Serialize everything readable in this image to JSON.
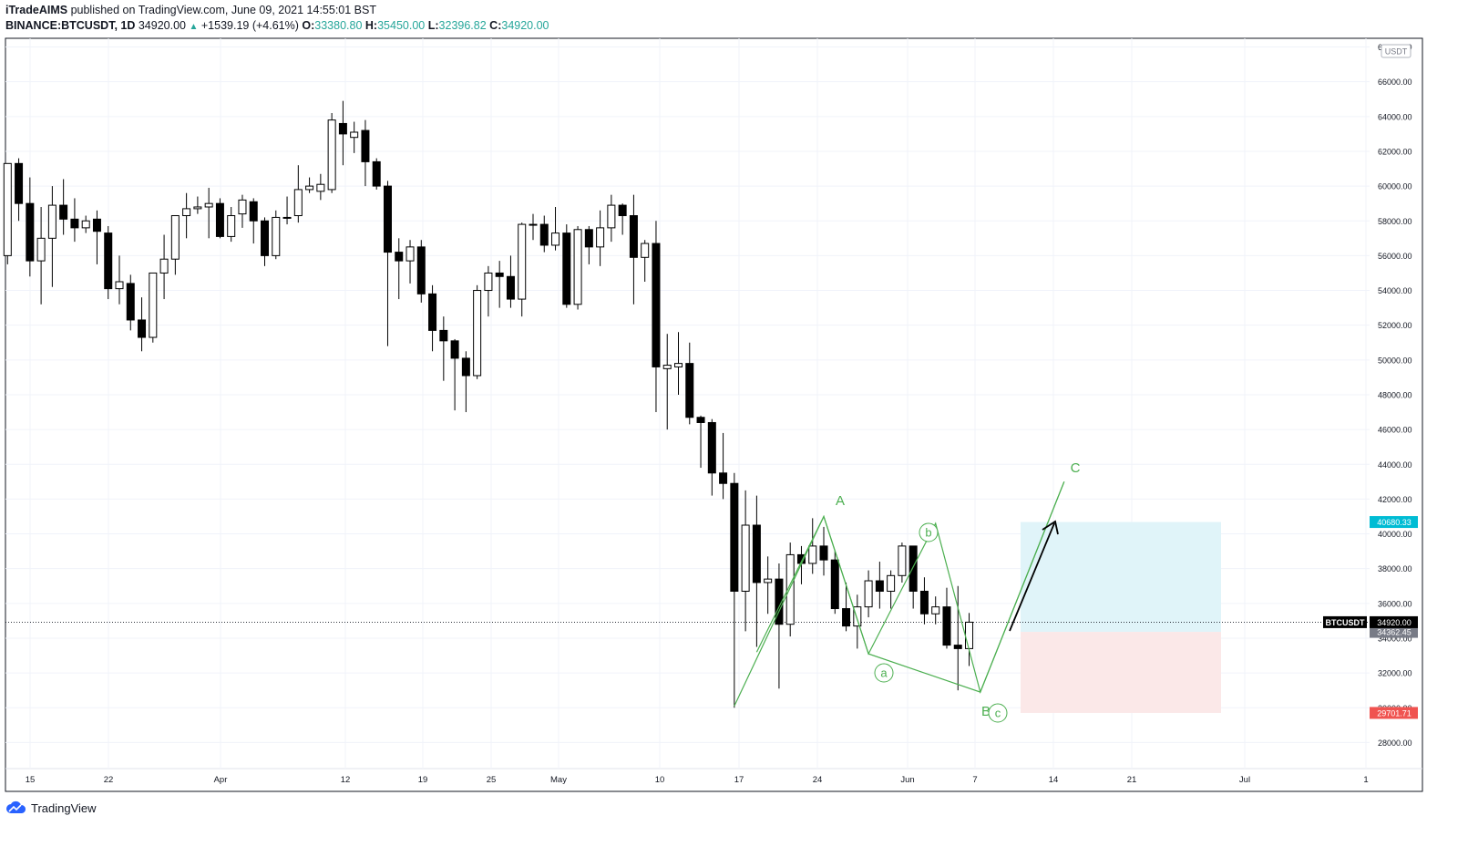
{
  "header": {
    "author": "iTradeAIMS",
    "published": "published on TradingView.com, June 09, 2021 14:55:01 BST",
    "symbol": "BINANCE:BTCUSDT, 1D",
    "last": "34920.00",
    "change": "+1539.19 (+4.61%)",
    "o_label": "O:",
    "o": "33380.80",
    "h_label": "H:",
    "h": "35450.00",
    "l_label": "L:",
    "l": "32396.82",
    "c_label": "C:",
    "c": "34920.00"
  },
  "footer": {
    "brand": "TradingView"
  },
  "colors": {
    "up": "#ffffff",
    "down": "#000000",
    "wave": "#4caf50",
    "target_zone": "#e0f4f9",
    "stop_zone": "#fbe8e8",
    "target_tag": "#00bcd4",
    "stop_tag": "#f05350",
    "price_tag": "#000000",
    "avg_tag": "#787b86"
  },
  "chart_data": {
    "type": "candlestick",
    "currency": "USDT",
    "x_ticks": [
      "15",
      "22",
      "Apr",
      "12",
      "19",
      "25",
      "May",
      "10",
      "17",
      "24",
      "Jun",
      "7",
      "14",
      "21",
      "Jul",
      "1"
    ],
    "ylim": [
      26500,
      68500
    ],
    "y_ticks": [
      "68000.00",
      "66000.00",
      "64000.00",
      "62000.00",
      "60000.00",
      "58000.00",
      "56000.00",
      "54000.00",
      "52000.00",
      "50000.00",
      "48000.00",
      "46000.00",
      "44000.00",
      "42000.00",
      "40000.00",
      "38000.00",
      "36000.00",
      "34000.00",
      "32000.00",
      "30000.00",
      "28000.00"
    ],
    "candles": [
      {
        "o": 56000,
        "h": 61000,
        "l": 55500,
        "c": 61300
      },
      {
        "o": 61300,
        "h": 61600,
        "l": 58000,
        "c": 59000
      },
      {
        "o": 59000,
        "h": 60500,
        "l": 54800,
        "c": 55700
      },
      {
        "o": 55700,
        "h": 58800,
        "l": 53200,
        "c": 57000
      },
      {
        "o": 57000,
        "h": 60000,
        "l": 54200,
        "c": 58900
      },
      {
        "o": 58900,
        "h": 60400,
        "l": 57200,
        "c": 58100
      },
      {
        "o": 58100,
        "h": 59300,
        "l": 56800,
        "c": 57600
      },
      {
        "o": 57600,
        "h": 58300,
        "l": 57300,
        "c": 58000
      },
      {
        "o": 58100,
        "h": 58600,
        "l": 55500,
        "c": 57400
      },
      {
        "o": 57300,
        "h": 57700,
        "l": 53500,
        "c": 54100
      },
      {
        "o": 54100,
        "h": 56000,
        "l": 53200,
        "c": 54500
      },
      {
        "o": 54400,
        "h": 54900,
        "l": 51700,
        "c": 52300
      },
      {
        "o": 52300,
        "h": 53600,
        "l": 50500,
        "c": 51300
      },
      {
        "o": 51300,
        "h": 55000,
        "l": 51000,
        "c": 55000
      },
      {
        "o": 55000,
        "h": 57200,
        "l": 53500,
        "c": 55800
      },
      {
        "o": 55800,
        "h": 58000,
        "l": 54900,
        "c": 58300
      },
      {
        "o": 58300,
        "h": 59600,
        "l": 57000,
        "c": 58700
      },
      {
        "o": 58700,
        "h": 59400,
        "l": 58400,
        "c": 58800
      },
      {
        "o": 58800,
        "h": 59900,
        "l": 57000,
        "c": 59000
      },
      {
        "o": 59000,
        "h": 59300,
        "l": 57000,
        "c": 57100
      },
      {
        "o": 57100,
        "h": 58800,
        "l": 56800,
        "c": 58300
      },
      {
        "o": 58400,
        "h": 59500,
        "l": 57600,
        "c": 59200
      },
      {
        "o": 59100,
        "h": 59300,
        "l": 56700,
        "c": 58000
      },
      {
        "o": 58000,
        "h": 58200,
        "l": 55400,
        "c": 56000
      },
      {
        "o": 56000,
        "h": 58600,
        "l": 55800,
        "c": 58200
      },
      {
        "o": 58200,
        "h": 59400,
        "l": 57800,
        "c": 58200
      },
      {
        "o": 58300,
        "h": 61200,
        "l": 57900,
        "c": 59800
      },
      {
        "o": 59800,
        "h": 60500,
        "l": 59600,
        "c": 60000
      },
      {
        "o": 59700,
        "h": 60700,
        "l": 59200,
        "c": 60100
      },
      {
        "o": 59800,
        "h": 64200,
        "l": 59600,
        "c": 63800
      },
      {
        "o": 63600,
        "h": 64900,
        "l": 61200,
        "c": 63000
      },
      {
        "o": 62800,
        "h": 63700,
        "l": 61900,
        "c": 63100
      },
      {
        "o": 63200,
        "h": 63800,
        "l": 60000,
        "c": 61400
      },
      {
        "o": 61400,
        "h": 61600,
        "l": 59800,
        "c": 60000
      },
      {
        "o": 60000,
        "h": 60300,
        "l": 50800,
        "c": 56200
      },
      {
        "o": 56200,
        "h": 57000,
        "l": 53500,
        "c": 55700
      },
      {
        "o": 55700,
        "h": 56900,
        "l": 54400,
        "c": 56500
      },
      {
        "o": 56500,
        "h": 56900,
        "l": 53300,
        "c": 53800
      },
      {
        "o": 53800,
        "h": 54300,
        "l": 50500,
        "c": 51700
      },
      {
        "o": 51700,
        "h": 52500,
        "l": 48800,
        "c": 51100
      },
      {
        "o": 51100,
        "h": 51200,
        "l": 47100,
        "c": 50100
      },
      {
        "o": 50100,
        "h": 50500,
        "l": 47000,
        "c": 49100
      },
      {
        "o": 49100,
        "h": 54300,
        "l": 48900,
        "c": 54000
      },
      {
        "o": 54000,
        "h": 55400,
        "l": 52500,
        "c": 55000
      },
      {
        "o": 55000,
        "h": 55700,
        "l": 53000,
        "c": 54800
      },
      {
        "o": 54800,
        "h": 56000,
        "l": 53000,
        "c": 53500
      },
      {
        "o": 53500,
        "h": 57900,
        "l": 52500,
        "c": 57800
      },
      {
        "o": 57800,
        "h": 58400,
        "l": 56900,
        "c": 57800
      },
      {
        "o": 57800,
        "h": 58300,
        "l": 56200,
        "c": 56600
      },
      {
        "o": 56600,
        "h": 58800,
        "l": 56300,
        "c": 57300
      },
      {
        "o": 57300,
        "h": 57800,
        "l": 53000,
        "c": 53200
      },
      {
        "o": 53200,
        "h": 57700,
        "l": 52900,
        "c": 57500
      },
      {
        "o": 57500,
        "h": 57700,
        "l": 55500,
        "c": 56500
      },
      {
        "o": 56500,
        "h": 58600,
        "l": 55400,
        "c": 57600
      },
      {
        "o": 57600,
        "h": 59500,
        "l": 56800,
        "c": 58900
      },
      {
        "o": 58900,
        "h": 59000,
        "l": 57200,
        "c": 58300
      },
      {
        "o": 58300,
        "h": 59500,
        "l": 53200,
        "c": 55900
      },
      {
        "o": 55900,
        "h": 56900,
        "l": 54500,
        "c": 56700
      },
      {
        "o": 56700,
        "h": 58000,
        "l": 47000,
        "c": 49600
      },
      {
        "o": 49500,
        "h": 51500,
        "l": 46000,
        "c": 49700
      },
      {
        "o": 49600,
        "h": 51600,
        "l": 48000,
        "c": 49800
      },
      {
        "o": 49800,
        "h": 51000,
        "l": 46300,
        "c": 46700
      },
      {
        "o": 46700,
        "h": 46800,
        "l": 43800,
        "c": 46400
      },
      {
        "o": 46400,
        "h": 46600,
        "l": 42200,
        "c": 43500
      },
      {
        "o": 43500,
        "h": 45800,
        "l": 42000,
        "c": 42900
      },
      {
        "o": 42900,
        "h": 43500,
        "l": 30000,
        "c": 36700
      },
      {
        "o": 36700,
        "h": 42500,
        "l": 34400,
        "c": 40500
      },
      {
        "o": 40500,
        "h": 42200,
        "l": 33500,
        "c": 37200
      },
      {
        "o": 37200,
        "h": 38700,
        "l": 35400,
        "c": 37400
      },
      {
        "o": 37400,
        "h": 38300,
        "l": 31100,
        "c": 34800
      },
      {
        "o": 34800,
        "h": 39500,
        "l": 34100,
        "c": 38800
      },
      {
        "o": 38800,
        "h": 39300,
        "l": 37100,
        "c": 38300
      },
      {
        "o": 38300,
        "h": 40900,
        "l": 37700,
        "c": 39300
      },
      {
        "o": 39300,
        "h": 40400,
        "l": 37600,
        "c": 38500
      },
      {
        "o": 38500,
        "h": 39000,
        "l": 35400,
        "c": 35700
      },
      {
        "o": 35700,
        "h": 37200,
        "l": 34400,
        "c": 34700
      },
      {
        "o": 34700,
        "h": 36500,
        "l": 33400,
        "c": 35800
      },
      {
        "o": 35800,
        "h": 37900,
        "l": 35200,
        "c": 37300
      },
      {
        "o": 37300,
        "h": 38400,
        "l": 35700,
        "c": 36700
      },
      {
        "o": 36700,
        "h": 37900,
        "l": 35700,
        "c": 37600
      },
      {
        "o": 37600,
        "h": 39500,
        "l": 37200,
        "c": 39300
      },
      {
        "o": 39300,
        "h": 39300,
        "l": 35700,
        "c": 36700
      },
      {
        "o": 36700,
        "h": 37500,
        "l": 34800,
        "c": 35400
      },
      {
        "o": 35400,
        "h": 36400,
        "l": 34800,
        "c": 35800
      },
      {
        "o": 35800,
        "h": 36900,
        "l": 33400,
        "c": 33600
      },
      {
        "o": 33600,
        "h": 37000,
        "l": 31000,
        "c": 33400
      },
      {
        "o": 33400,
        "h": 35450,
        "l": 32400,
        "c": 34920
      }
    ],
    "last_price": 34920,
    "last_price_label": "34920.00",
    "symbol_tag": "BTCUSDT",
    "avg_price": 34362.45,
    "avg_price_label": "34362.45",
    "target_price": 40680.33,
    "target_price_label": "40680.33",
    "stop_price": 29701.71,
    "stop_price_label": "29701.71",
    "wave_labels": {
      "A": "A",
      "B": "B",
      "C": "C",
      "a": "a",
      "b": "b",
      "c": "c"
    },
    "wave_points": [
      {
        "i": 65,
        "p": 30100
      },
      {
        "i": 73,
        "p": 41000
      },
      {
        "i": 77,
        "p": 33100
      },
      {
        "i": 83,
        "p": 40600
      },
      {
        "i": 87,
        "p": 30900
      },
      {
        "i": 94.5,
        "p": 43000
      }
    ],
    "wave_lower_points": [
      {
        "i": 67,
        "p": 33200
      },
      {
        "i": 73,
        "p": 41000
      },
      {
        "i": 77,
        "p": 33100
      },
      {
        "i": 87,
        "p": 30900
      },
      {
        "i": 94.5,
        "p": 43000
      }
    ]
  }
}
